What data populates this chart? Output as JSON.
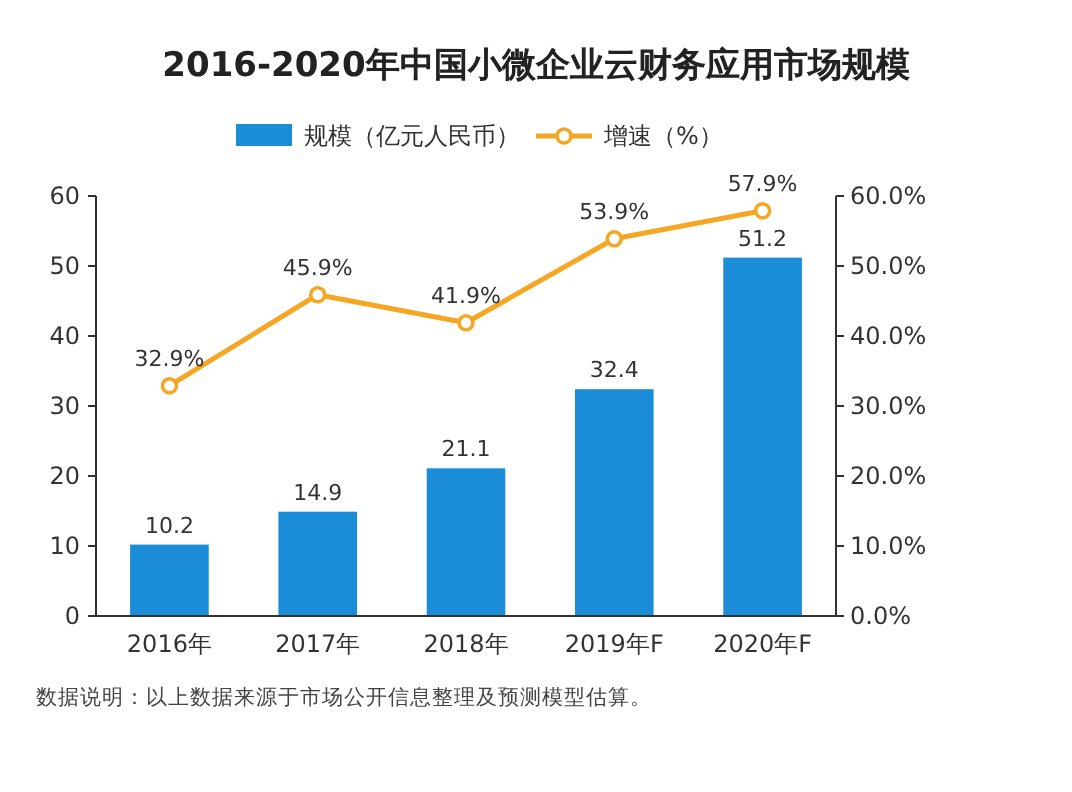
{
  "chart_data": {
    "type": "bar",
    "title": "2016-2020年中国小微企业云财务应用市场规模",
    "categories": [
      "2016年",
      "2017年",
      "2018年",
      "2019年F",
      "2020年F"
    ],
    "series": [
      {
        "name": "规模（亿元人民币）",
        "color": "#1a8cd8",
        "values": [
          10.2,
          14.9,
          21.1,
          32.4,
          51.2
        ]
      },
      {
        "name": "增速（%）",
        "type": "line",
        "axis": "y2",
        "color": "#f5a623",
        "values": [
          32.9,
          45.9,
          41.9,
          53.9,
          57.9
        ],
        "value_labels": [
          "32.9%",
          "45.9%",
          "41.9%",
          "53.9%",
          "57.9%"
        ]
      }
    ],
    "data_labels": true,
    "marker": "circle",
    "legend": "top",
    "grid": false,
    "ylim": [
      0,
      60
    ],
    "yticks": [
      0,
      10,
      20,
      30,
      40,
      50,
      60
    ],
    "y2lim": [
      0,
      60
    ],
    "y2ticks": [
      {
        "value": 0,
        "label": "0.0%"
      },
      {
        "value": 10,
        "label": "10.0%"
      },
      {
        "value": 20,
        "label": "20.0%"
      },
      {
        "value": 30,
        "label": "30.0%"
      },
      {
        "value": 40,
        "label": "40.0%"
      },
      {
        "value": 50,
        "label": "50.0%"
      },
      {
        "value": 60,
        "label": "60.0%"
      }
    ],
    "annotations": [
      "数据说明：以上数据来源于市场公开信息整理及预测模型估算。"
    ]
  }
}
